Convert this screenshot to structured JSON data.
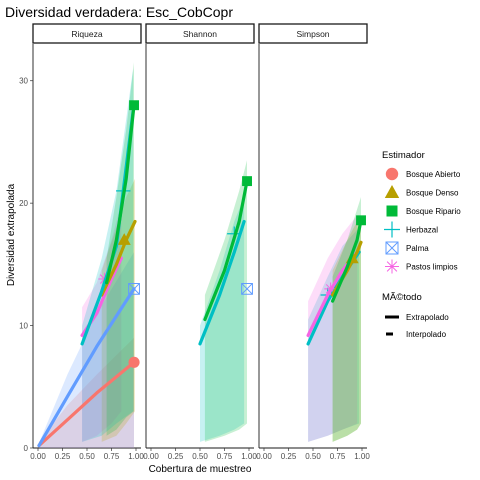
{
  "chart_data": {
    "type": "line",
    "title": "Diversidad verdadera: Esc_CobCopr",
    "xlabel": "Cobertura de muestreo",
    "ylabel": "Diversidad extrapolada",
    "xlim": [
      0.0,
      1.0
    ],
    "ylim": [
      0,
      33
    ],
    "x_ticks": [
      "0.00",
      "0.25",
      "0.50",
      "0.75",
      "1.00"
    ],
    "y_ticks": [
      "0",
      "10",
      "20",
      "30"
    ],
    "facets": [
      "Riqueza",
      "Shannon",
      "Simpson"
    ],
    "legend_placement": "right",
    "grid": false,
    "legend": {
      "estimador_title": "Estimador",
      "estimador_items": [
        {
          "name": "Bosque Abierto",
          "color": "#F8766D",
          "shape": "circle"
        },
        {
          "name": "Bosque Denso",
          "color": "#B79F00",
          "shape": "triangle"
        },
        {
          "name": "Bosque Ripario",
          "color": "#00BA38",
          "shape": "square"
        },
        {
          "name": "Herbazal",
          "color": "#00BFC4",
          "shape": "plus"
        },
        {
          "name": "Palma",
          "color": "#619CFF",
          "shape": "boxx"
        },
        {
          "name": "Pastos limpios",
          "color": "#F564E3",
          "shape": "asterisk"
        }
      ],
      "metodo_title": "MÃ©todo",
      "metodo_items": [
        {
          "name": "Extrapolado",
          "style": "solid"
        },
        {
          "name": "Interpolado",
          "style": "dashed"
        }
      ]
    },
    "series": [
      {
        "facet": "Riqueza",
        "name": "Bosque Abierto",
        "color": "#F8766D",
        "shape": "circle",
        "x": [
          0.01,
          0.3,
          0.6,
          0.98
        ],
        "y": [
          0.2,
          2.3,
          4.5,
          7.0
        ],
        "lower": [
          0.0,
          0.0,
          0.0,
          0.0
        ],
        "upper": [
          0.5,
          3.5,
          6.0,
          9.0
        ],
        "point": [
          0.98,
          7.0
        ]
      },
      {
        "facet": "Riqueza",
        "name": "Palma",
        "color": "#619CFF",
        "shape": "boxx",
        "x": [
          0.01,
          0.3,
          0.6,
          0.98
        ],
        "y": [
          0.2,
          4.2,
          8.3,
          13.0
        ],
        "lower": [
          0.0,
          0.0,
          0.0,
          0.0
        ],
        "upper": [
          0.4,
          6.0,
          11.0,
          16.0
        ],
        "point": [
          0.98,
          13.0
        ]
      },
      {
        "facet": "Riqueza",
        "name": "Pastos limpios",
        "color": "#F564E3",
        "shape": "asterisk",
        "x": [
          0.45,
          0.6,
          0.75,
          0.85
        ],
        "y": [
          9.2,
          11.0,
          13.8,
          15.5
        ],
        "lower": [
          0.5,
          1.0,
          2.0,
          3.0
        ],
        "upper": [
          11.5,
          13.5,
          17.0,
          20.0
        ],
        "point": [
          0.68,
          13.8
        ]
      },
      {
        "facet": "Riqueza",
        "name": "Bosque Denso",
        "color": "#B79F00",
        "shape": "triangle",
        "x": [
          0.65,
          0.8,
          0.9,
          0.99
        ],
        "y": [
          12.5,
          15.0,
          17.0,
          18.5
        ],
        "lower": [
          0.5,
          1.0,
          2.0,
          3.0
        ],
        "upper": [
          14.5,
          18.0,
          20.5,
          22.0
        ],
        "point": [
          0.88,
          17.0
        ]
      },
      {
        "facet": "Riqueza",
        "name": "Herbazal",
        "color": "#00BFC4",
        "shape": "plus",
        "x": [
          0.45,
          0.65,
          0.8,
          0.97
        ],
        "y": [
          8.5,
          12.8,
          16.5,
          27.5
        ],
        "lower": [
          0.5,
          1.0,
          2.0,
          3.0
        ],
        "upper": [
          10.0,
          15.5,
          21.0,
          31.0
        ],
        "point": [
          0.87,
          21.0
        ]
      },
      {
        "facet": "Riqueza",
        "name": "Bosque Ripario",
        "color": "#00BA38",
        "shape": "square",
        "x": [
          0.7,
          0.8,
          0.9,
          0.98
        ],
        "y": [
          13.5,
          17.0,
          22.0,
          28.0
        ],
        "lower": [
          1.0,
          1.5,
          2.5,
          3.0
        ],
        "upper": [
          15.5,
          20.5,
          26.0,
          31.5
        ],
        "point": [
          0.98,
          28.0
        ]
      },
      {
        "facet": "Shannon",
        "name": "Palma",
        "color": "#619CFF",
        "shape": "boxx",
        "x": [
          0.98
        ],
        "y": [
          13.0
        ],
        "lower": [],
        "upper": [],
        "point": [
          0.98,
          13.0
        ]
      },
      {
        "facet": "Shannon",
        "name": "Herbazal",
        "color": "#00BFC4",
        "shape": "plus",
        "x": [
          0.5,
          0.7,
          0.85,
          0.95
        ],
        "y": [
          8.5,
          12.5,
          16.0,
          18.5
        ],
        "lower": [
          0.5,
          1.0,
          1.5,
          2.0
        ],
        "upper": [
          10.0,
          14.5,
          18.5,
          20.5
        ],
        "point": [
          0.85,
          17.5
        ]
      },
      {
        "facet": "Shannon",
        "name": "Bosque Ripario",
        "color": "#00BA38",
        "shape": "square",
        "x": [
          0.55,
          0.75,
          0.9,
          0.98
        ],
        "y": [
          10.5,
          14.5,
          18.5,
          21.8
        ],
        "lower": [
          0.5,
          1.0,
          1.5,
          2.0
        ],
        "upper": [
          12.5,
          17.0,
          21.0,
          23.5
        ],
        "point": [
          0.98,
          21.8
        ]
      },
      {
        "facet": "Simpson",
        "name": "Herbazal",
        "color": "#00BFC4",
        "shape": "plus",
        "x": [
          0.45,
          0.65,
          0.8,
          0.97
        ],
        "y": [
          8.5,
          12.0,
          14.0,
          16.0
        ],
        "lower": [
          0.5,
          1.0,
          1.5,
          2.0
        ],
        "upper": [
          10.5,
          14.0,
          16.5,
          18.0
        ],
        "point": [
          0.65,
          12.5
        ]
      },
      {
        "facet": "Simpson",
        "name": "Pastos limpios",
        "color": "#F564E3",
        "shape": "asterisk",
        "x": [
          0.45,
          0.65,
          0.8,
          0.95
        ],
        "y": [
          9.2,
          12.5,
          14.5,
          16.0
        ],
        "lower": [
          0.5,
          1.0,
          1.5,
          2.0
        ],
        "upper": [
          12.0,
          15.5,
          17.5,
          19.0
        ],
        "point": [
          0.68,
          13.0
        ]
      },
      {
        "facet": "Simpson",
        "name": "Bosque Denso",
        "color": "#B79F00",
        "shape": "triangle",
        "x": [
          0.7,
          0.85,
          0.95,
          0.99
        ],
        "y": [
          12.5,
          14.5,
          16.0,
          16.8
        ],
        "lower": [
          0.5,
          1.0,
          1.5,
          2.0
        ],
        "upper": [
          14.5,
          17.0,
          18.5,
          19.0
        ],
        "point": [
          0.9,
          15.5
        ]
      },
      {
        "facet": "Simpson",
        "name": "Bosque Ripario",
        "color": "#00BA38",
        "shape": "square",
        "x": [
          0.7,
          0.85,
          0.95,
          0.99
        ],
        "y": [
          12.0,
          14.8,
          17.0,
          18.6
        ],
        "lower": [
          0.5,
          1.0,
          1.5,
          2.0
        ],
        "upper": [
          14.0,
          17.0,
          19.5,
          20.5
        ],
        "point": [
          0.99,
          18.6
        ]
      }
    ]
  }
}
